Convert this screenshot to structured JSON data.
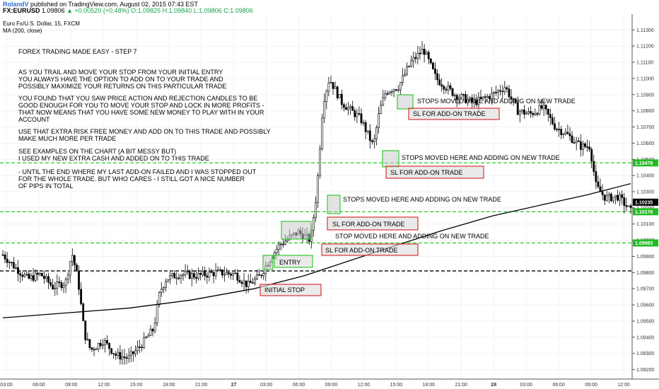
{
  "header": {
    "author": "RolandV",
    "published": "published on TradingView.com, August 02, 2015 07:43 EST",
    "symbol": "FX:EURUSD",
    "last": "1.09806",
    "change": "+0.00520 (+0.48%)",
    "ohlc_o": "O:1.09825",
    "ohlc_h": "H:1.09840",
    "ohlc_l": "L:1.09806",
    "ohlc_c": "C:1.09806"
  },
  "chart_data": {
    "type": "candlestick",
    "title": "Euro Fx/U.S. Dollar, 15, FXCM",
    "indicator": "MA (200, close)",
    "ylim": [
      1.0915,
      1.1138
    ],
    "y_ticks": [
      "1.11300",
      "1.11200",
      "1.11100",
      "1.11000",
      "1.10900",
      "1.10800",
      "1.10700",
      "1.10600",
      "1.10500",
      "1.10400",
      "1.10300",
      "1.10200",
      "1.10100",
      "1.10000",
      "1.09900",
      "1.09800",
      "1.09700",
      "1.09600",
      "1.09500",
      "1.09400",
      "1.09300",
      "1.09200"
    ],
    "x_ticks": [
      "03:00",
      "06:00",
      "09:00",
      "12:00",
      "15:00",
      "18:00",
      "21:00",
      "27",
      "03:00",
      "06:00",
      "09:00",
      "12:00",
      "15:00",
      "18:00",
      "21:00",
      "28",
      "03:00",
      "06:00",
      "09:00",
      "12:00"
    ],
    "price_labels": [
      {
        "text": "1.10478",
        "value": 1.10478,
        "color": "#22bb22"
      },
      {
        "text": "1.10235",
        "value": 1.10235,
        "color": "#000000"
      },
      {
        "text": "1.10176",
        "value": 1.10176,
        "color": "#22bb22"
      },
      {
        "text": "1.09983",
        "value": 1.09983,
        "color": "#22bb22"
      }
    ],
    "hlines": [
      {
        "value": 1.10478,
        "color": "#22cc22"
      },
      {
        "value": 1.10176,
        "color": "#22cc22"
      },
      {
        "value": 1.09983,
        "color": "#22cc22"
      },
      {
        "value": 1.0981,
        "color": "#000000"
      }
    ],
    "notes": [
      "FOREX TRADING MADE EASY - STEP 7",
      "AS YOU TRAIL AND MOVE YOUR STOP FROM YOUR INITIAL ENTRY",
      "YOU ALWAYS HAVE THE OPTION TO ADD ON TO YOUR TRADE AND",
      "POSSIBLY MAXIMIZE YOUR RETURNS ON THIS PARTICULAR TRADE",
      "YOU FOUND THAT YOU SAW PRICE ACTION AND REJECTION CANDLES TO BE",
      "GOOD ENOUGH FOR YOU TO MOVE YOUR STOP AND LOCK IN MORE PROFITS -",
      "THAT NOW MEANS THAT YOU HAVE SOME NEW MONEY TO PLAY WITH IN YOUR",
      "ACCOUNT",
      "USE THAT EXTRA RISK FREE MONEY AND ADD ON TO THIS TRADE AND POSSIBLY",
      "MAKE MUCH MORE PER TRADE",
      "SEE EXAMPLES ON THE CHART (A BIT MESSY BUT)",
      "I USED MY NEW EXTRA CASH AND ADDED ON TO THIS TRADE",
      "- UNTIL THE END WHERE MY LAST ADD-ON FAILED AND I WAS STOPPED OUT",
      "FOR THE WHOLE TRADE. BUT WHO CARES -  I STILL GOT A NICE NUMBER",
      "OF PIPS IN TOTAL"
    ],
    "annotations": [
      {
        "text": "STOPS MOVED HERE AND ADDING ON NEW TRADE",
        "kind": "plain"
      },
      {
        "text": "SL FOR ADD-ON TRADE",
        "kind": "sl"
      },
      {
        "text": "STOPS MOVED HERE AND ADDING ON NEW TRADE",
        "kind": "plain"
      },
      {
        "text": "SL FOR ADD-ON TRADE",
        "kind": "sl"
      },
      {
        "text": "STOPS MOVED HERE AND ADDING ON NEW TRADE",
        "kind": "plain"
      },
      {
        "text": "SL FOR ADD-ON TRADE",
        "kind": "sl"
      },
      {
        "text": "STOP MOVED HERE AND ADDING ON NEW TRADE",
        "kind": "plain"
      },
      {
        "text": "SL FOR ADD-ON TRADE",
        "kind": "sl"
      },
      {
        "text": "ENTRY",
        "kind": "entry"
      },
      {
        "text": "INITIAL STOP",
        "kind": "stop"
      }
    ],
    "price_path": [
      {
        "t": 0,
        "p": 1.0991
      },
      {
        "t": 0.02,
        "p": 1.0983
      },
      {
        "t": 0.04,
        "p": 1.0976
      },
      {
        "t": 0.06,
        "p": 1.0979
      },
      {
        "t": 0.08,
        "p": 1.0971
      },
      {
        "t": 0.1,
        "p": 1.0974
      },
      {
        "t": 0.11,
        "p": 1.0992
      },
      {
        "t": 0.12,
        "p": 1.0975
      },
      {
        "t": 0.13,
        "p": 1.0942
      },
      {
        "t": 0.14,
        "p": 1.0932
      },
      {
        "t": 0.16,
        "p": 1.0938
      },
      {
        "t": 0.18,
        "p": 1.0929
      },
      {
        "t": 0.2,
        "p": 1.0927
      },
      {
        "t": 0.22,
        "p": 1.0935
      },
      {
        "t": 0.24,
        "p": 1.0945
      },
      {
        "t": 0.25,
        "p": 1.0968
      },
      {
        "t": 0.26,
        "p": 1.0976
      },
      {
        "t": 0.28,
        "p": 1.0979
      },
      {
        "t": 0.31,
        "p": 1.0978
      },
      {
        "t": 0.34,
        "p": 1.098
      },
      {
        "t": 0.37,
        "p": 1.0979
      },
      {
        "t": 0.39,
        "p": 1.0972
      },
      {
        "t": 0.41,
        "p": 1.0978
      },
      {
        "t": 0.42,
        "p": 1.0985
      },
      {
        "t": 0.44,
        "p": 1.0997
      },
      {
        "t": 0.47,
        "p": 1.1005
      },
      {
        "t": 0.49,
        "p": 1.1
      },
      {
        "t": 0.5,
        "p": 1.103
      },
      {
        "t": 0.51,
        "p": 1.1085
      },
      {
        "t": 0.52,
        "p": 1.11
      },
      {
        "t": 0.54,
        "p": 1.1085
      },
      {
        "t": 0.57,
        "p": 1.1075
      },
      {
        "t": 0.59,
        "p": 1.1058
      },
      {
        "t": 0.6,
        "p": 1.108
      },
      {
        "t": 0.61,
        "p": 1.1092
      },
      {
        "t": 0.63,
        "p": 1.1095
      },
      {
        "t": 0.65,
        "p": 1.111
      },
      {
        "t": 0.67,
        "p": 1.1118
      },
      {
        "t": 0.69,
        "p": 1.11
      },
      {
        "t": 0.72,
        "p": 1.109
      },
      {
        "t": 0.75,
        "p": 1.1085
      },
      {
        "t": 0.78,
        "p": 1.109
      },
      {
        "t": 0.8,
        "p": 1.1095
      },
      {
        "t": 0.82,
        "p": 1.108
      },
      {
        "t": 0.84,
        "p": 1.1078
      },
      {
        "t": 0.86,
        "p": 1.1082
      },
      {
        "t": 0.88,
        "p": 1.107
      },
      {
        "t": 0.9,
        "p": 1.1065
      },
      {
        "t": 0.92,
        "p": 1.1058
      },
      {
        "t": 0.935,
        "p": 1.1058
      },
      {
        "t": 0.945,
        "p": 1.1033
      },
      {
        "t": 0.96,
        "p": 1.1026
      },
      {
        "t": 0.98,
        "p": 1.1027
      },
      {
        "t": 1,
        "p": 1.1018
      }
    ],
    "ma_path": [
      {
        "t": 0,
        "p": 1.0952
      },
      {
        "t": 0.1,
        "p": 1.0955
      },
      {
        "t": 0.2,
        "p": 1.0958
      },
      {
        "t": 0.3,
        "p": 1.0963
      },
      {
        "t": 0.4,
        "p": 1.097
      },
      {
        "t": 0.48,
        "p": 1.0978
      },
      {
        "t": 0.55,
        "p": 1.0987
      },
      {
        "t": 0.62,
        "p": 1.0996
      },
      {
        "t": 0.7,
        "p": 1.1006
      },
      {
        "t": 0.78,
        "p": 1.1015
      },
      {
        "t": 0.86,
        "p": 1.1022
      },
      {
        "t": 0.93,
        "p": 1.1028
      },
      {
        "t": 1,
        "p": 1.1035
      }
    ]
  }
}
